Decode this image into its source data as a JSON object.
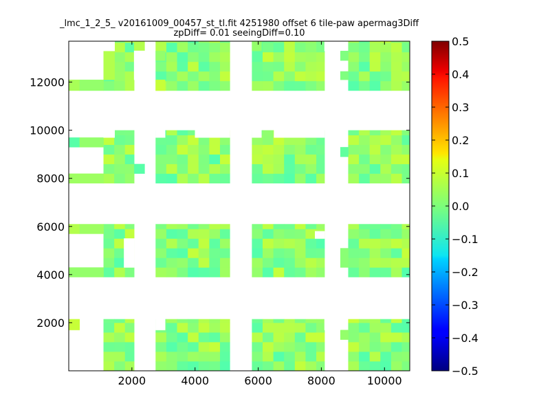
{
  "chart_data": {
    "type": "heatmap",
    "title": "_lmc_1_2_5_ v20161009_00457_st_tl.fit 4251980 offset 6 tile-paw apermag3Diff",
    "subtitle": "zpDiff= 0.01 seeingDiff=0.10",
    "xlabel": "",
    "ylabel": "",
    "xlim": [
      0,
      10800
    ],
    "ylim": [
      0,
      13700
    ],
    "xticks": [
      "2000",
      "4000",
      "6000",
      "8000",
      "10000"
    ],
    "yticks": [
      "2000",
      "4000",
      "6000",
      "8000",
      "10000",
      "12000"
    ],
    "colorbar": {
      "colormap": "jet",
      "min": -0.5,
      "max": 0.5,
      "ticks": [
        "0.5",
        "0.4",
        "0.3",
        "0.2",
        "0.1",
        "0.0",
        "−0.1",
        "−0.2",
        "−0.3",
        "−0.4",
        "−0.5"
      ]
    },
    "cell_size": [
      340,
      400
    ],
    "detector_blocks": [
      {
        "x": [
          1100,
          2070
        ],
        "y": [
          0,
          2150
        ]
      },
      {
        "x": [
          2750,
          5100
        ],
        "y": [
          0,
          2150
        ]
      },
      {
        "x": [
          5800,
          8100
        ],
        "y": [
          0,
          2150
        ]
      },
      {
        "x": [
          8850,
          10800
        ],
        "y": [
          0,
          2150
        ]
      },
      {
        "x": [
          1100,
          2070
        ],
        "y": [
          3900,
          6100
        ]
      },
      {
        "x": [
          2750,
          5100
        ],
        "y": [
          3900,
          6100
        ]
      },
      {
        "x": [
          5800,
          8100
        ],
        "y": [
          3900,
          6100
        ]
      },
      {
        "x": [
          8850,
          10800
        ],
        "y": [
          3900,
          6100
        ]
      },
      {
        "x": [
          1100,
          2070
        ],
        "y": [
          7800,
          10000
        ]
      },
      {
        "x": [
          2750,
          5100
        ],
        "y": [
          7800,
          10000
        ]
      },
      {
        "x": [
          5800,
          8100
        ],
        "y": [
          7800,
          10000
        ]
      },
      {
        "x": [
          8850,
          10800
        ],
        "y": [
          7800,
          10000
        ]
      },
      {
        "x": [
          1100,
          2070
        ],
        "y": [
          11650,
          13700
        ]
      },
      {
        "x": [
          2750,
          5100
        ],
        "y": [
          11650,
          13700
        ]
      },
      {
        "x": [
          5800,
          8100
        ],
        "y": [
          11650,
          13700
        ]
      },
      {
        "x": [
          8850,
          10800
        ],
        "y": [
          11650,
          13700
        ]
      }
    ],
    "extra_cells": [
      {
        "x": [
          0,
          340
        ],
        "y": [
          11650,
          12100
        ],
        "value": 0.04
      },
      {
        "x": [
          340,
          1100
        ],
        "y": [
          11650,
          12100
        ],
        "value": 0.02
      },
      {
        "x": [
          1100,
          1450
        ],
        "y": [
          12100,
          13300
        ],
        "value": 0.05
      },
      {
        "x": [
          2070,
          2400
        ],
        "y": [
          13300,
          13700
        ],
        "value": 0.05
      },
      {
        "x": [
          2750,
          3050
        ],
        "y": [
          11650,
          12100
        ],
        "value": 0.07
      },
      {
        "x": [
          2750,
          3050
        ],
        "y": [
          12900,
          13300
        ],
        "value": 0.02
      },
      {
        "x": [
          5800,
          6100
        ],
        "y": [
          13300,
          13700
        ],
        "value": 0.02
      },
      {
        "x": [
          8600,
          8850
        ],
        "y": [
          12900,
          13300
        ],
        "value": 0.0
      },
      {
        "x": [
          8600,
          8850
        ],
        "y": [
          12100,
          12450
        ],
        "value": 0.0
      },
      {
        "x": [
          0,
          340
        ],
        "y": [
          9300,
          9700
        ],
        "value": -0.04
      },
      {
        "x": [
          340,
          1100
        ],
        "y": [
          9300,
          9700
        ],
        "value": 0.02
      },
      {
        "x": [
          0,
          1100
        ],
        "y": [
          7800,
          8200
        ],
        "value": 0.03
      },
      {
        "x": [
          2070,
          2400
        ],
        "y": [
          8200,
          8600
        ],
        "value": -0.04
      },
      {
        "x": [
          8600,
          8850
        ],
        "y": [
          8900,
          9300
        ],
        "value": -0.03
      },
      {
        "x": [
          0,
          340
        ],
        "y": [
          5700,
          6100
        ],
        "value": 0.05
      },
      {
        "x": [
          340,
          1100
        ],
        "y": [
          5700,
          6100
        ],
        "value": 0.03
      },
      {
        "x": [
          0,
          1100
        ],
        "y": [
          3900,
          4300
        ],
        "value": 0.02
      },
      {
        "x": [
          8600,
          8850
        ],
        "y": [
          4300,
          5100
        ],
        "value": 0.01
      },
      {
        "x": [
          0,
          340
        ],
        "y": [
          1700,
          2150
        ],
        "value": 0.07
      },
      {
        "x": [
          8600,
          8850
        ],
        "y": [
          1300,
          1700
        ],
        "value": 0.02
      }
    ],
    "missing_cells": [
      {
        "x": [
          1100,
          1450
        ],
        "y": [
          13300,
          13700
        ]
      },
      {
        "x": [
          2070,
          2400
        ],
        "y": [
          12100,
          13300
        ]
      },
      {
        "x": [
          8100,
          8600
        ],
        "y": [
          13300,
          13700
        ]
      },
      {
        "x": [
          1750,
          2070
        ],
        "y": [
          4300,
          5100
        ]
      },
      {
        "x": [
          1750,
          2070
        ],
        "y": [
          5100,
          5500
        ]
      },
      {
        "x": [
          1100,
          1450
        ],
        "y": [
          9700,
          10000
        ]
      },
      {
        "x": [
          2750,
          3050
        ],
        "y": [
          9700,
          10000
        ]
      },
      {
        "x": [
          4000,
          5100
        ],
        "y": [
          9700,
          10000
        ]
      },
      {
        "x": [
          5800,
          6100
        ],
        "y": [
          9700,
          10000
        ]
      },
      {
        "x": [
          6500,
          8100
        ],
        "y": [
          9700,
          10000
        ]
      },
      {
        "x": [
          7800,
          8100
        ],
        "y": [
          5500,
          5800
        ]
      },
      {
        "x": [
          2750,
          3050
        ],
        "y": [
          1700,
          2150
        ]
      },
      {
        "x": [
          8100,
          8600
        ],
        "y": [
          1700,
          2150
        ]
      }
    ],
    "grid": false,
    "legend": "none"
  }
}
